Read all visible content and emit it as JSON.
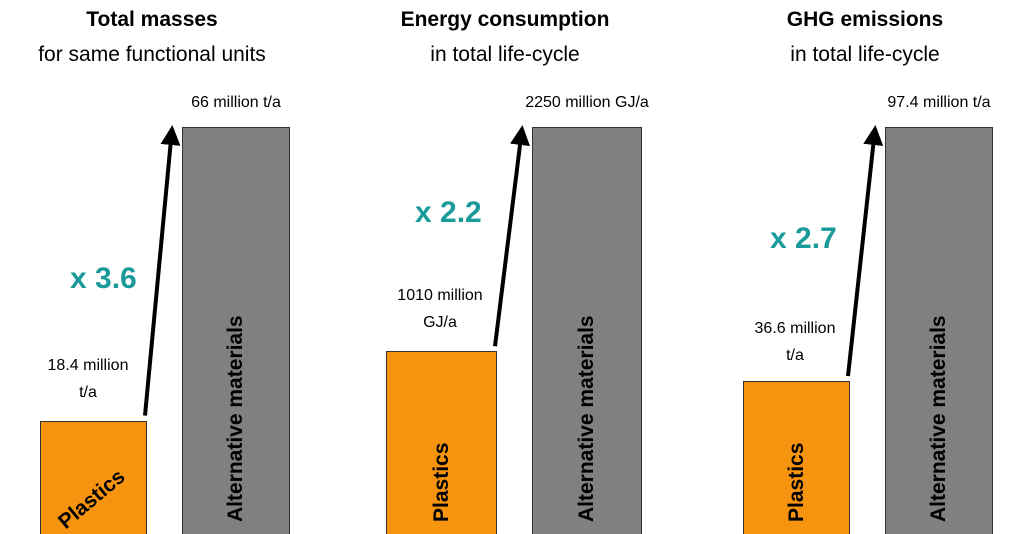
{
  "chart_data": [
    {
      "type": "bar",
      "title": "Total masses",
      "subtitle": "for same functional units",
      "categories": [
        "Plastics",
        "Alternative materials"
      ],
      "values": [
        18.4,
        66
      ],
      "value_labels": [
        "18.4 million t/a",
        "66 million t/a"
      ],
      "colors": [
        "#f7940f",
        "#808080"
      ],
      "annotation": "x 3.6"
    },
    {
      "type": "bar",
      "title": "Energy consumption",
      "subtitle": "in total life-cycle",
      "categories": [
        "Plastics",
        "Alternative materials"
      ],
      "values": [
        1010,
        2250
      ],
      "value_labels": [
        "1010 million GJ/a",
        "2250 million GJ/a"
      ],
      "colors": [
        "#f7940f",
        "#808080"
      ],
      "annotation": "x 2.2"
    },
    {
      "type": "bar",
      "title": "GHG emissions",
      "subtitle": "in total life-cycle",
      "categories": [
        "Plastics",
        "Alternative materials"
      ],
      "values": [
        36.6,
        97.4
      ],
      "value_labels": [
        "36.6 million t/a",
        "97.4 million t/a"
      ],
      "colors": [
        "#f7940f",
        "#808080"
      ],
      "annotation": "x 2.7"
    }
  ]
}
